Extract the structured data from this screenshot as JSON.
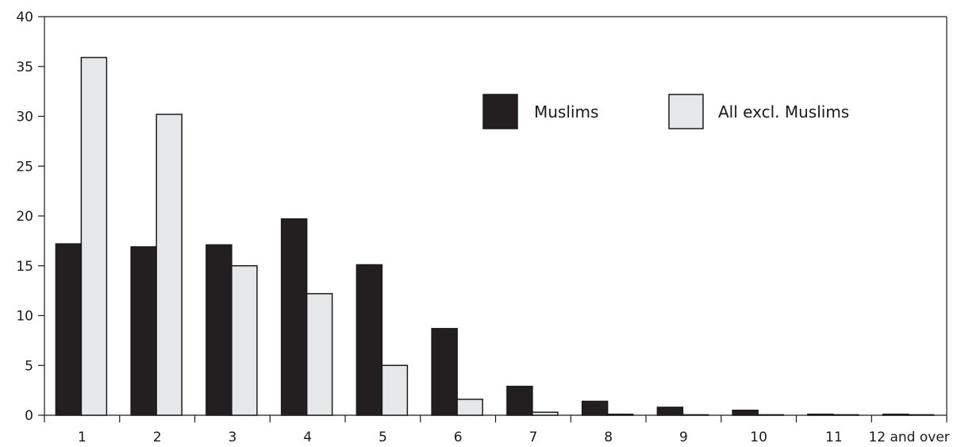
{
  "chart_data": {
    "type": "bar",
    "title": "",
    "xlabel": "",
    "ylabel": "",
    "ylim": [
      0,
      40
    ],
    "yticks": [
      "0",
      "5",
      "10",
      "15",
      "20",
      "25",
      "30",
      "35",
      "40"
    ],
    "categories": [
      "1",
      "2",
      "3",
      "4",
      "5",
      "6",
      "7",
      "8",
      "9",
      "10",
      "11",
      "12 and over"
    ],
    "series": [
      {
        "name": "Muslims",
        "color": "#231f20",
        "values": [
          17.2,
          16.9,
          17.1,
          19.7,
          15.1,
          8.7,
          2.9,
          1.4,
          0.8,
          0.5,
          0.1,
          0.1
        ]
      },
      {
        "name": "All excl. Muslims",
        "color": "#e6e7e8",
        "values": [
          35.9,
          30.2,
          15.0,
          12.2,
          5.0,
          1.6,
          0.3,
          0.1,
          0.05,
          0.05,
          0.05,
          0.05
        ]
      }
    ],
    "legend_position": "top-right",
    "grid": false
  }
}
